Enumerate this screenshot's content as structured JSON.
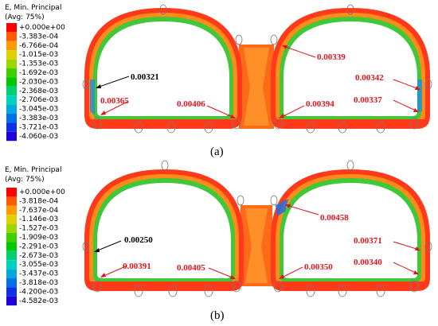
{
  "panels": [
    {
      "label": "(a)",
      "legend": {
        "title_line1": "E, Min. Principal",
        "title_line2": "(Avg: 75%)",
        "values": [
          "+0.000e+00",
          "-3.383e-04",
          "-6.766e-04",
          "-1.015e-03",
          "-1.353e-03",
          "-1.692e-03",
          "-2.030e-03",
          "-2.368e-03",
          "-2.706e-03",
          "-3.045e-03",
          "-3.383e-03",
          "-3.721e-03",
          "-4.060e-03"
        ]
      },
      "annotations": {
        "a1": "0.00321",
        "a2": "0.00339",
        "a3": "0.00342",
        "a4": "0.00365",
        "a5": "0.00406",
        "a6": "0.00394",
        "a7": "0.00337"
      }
    },
    {
      "label": "(b)",
      "legend": {
        "title_line1": "E, Min. Principal",
        "title_line2": "(Avg: 75%)",
        "values": [
          "+0.000e+00",
          "-3.818e-04",
          "-7.637e-04",
          "-1.146e-03",
          "-1.527e-03",
          "-1.909e-03",
          "-2.291e-03",
          "-2.673e-03",
          "-3.055e-03",
          "-3.437e-03",
          "-3.818e-03",
          "-4.200e-03",
          "-4.582e-03"
        ]
      },
      "annotations": {
        "b1": "0.00458",
        "b2": "0.00250",
        "b3": "0.00371",
        "b4": "0.00391",
        "b5": "0.00405",
        "b6": "0.00350",
        "b7": "0.00340"
      }
    }
  ],
  "colors": {
    "scale": [
      "#ff0000",
      "#ff5a00",
      "#ff9a00",
      "#e0d000",
      "#9cd800",
      "#40d000",
      "#00c800",
      "#00d070",
      "#00d0c0",
      "#00a8e0",
      "#0070e8",
      "#1030e8",
      "#2000d8"
    ],
    "tube_outer": "#ff3a1a",
    "tube_mid": "#ff8c1a",
    "tube_inner": "#40c838",
    "annotation_red": "#e0141e"
  }
}
